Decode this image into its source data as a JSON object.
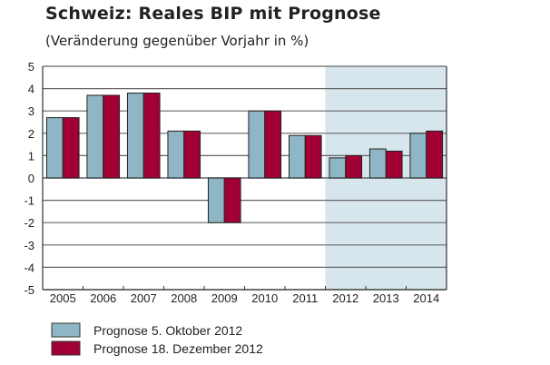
{
  "chart_data": {
    "type": "bar",
    "title": "Schweiz: Reales BIP mit Prognose",
    "subtitle": "(Veränderung gegenüber Vorjahr in %)",
    "xlabel": "",
    "ylabel": "",
    "categories": [
      "2005",
      "2006",
      "2007",
      "2008",
      "2009",
      "2010",
      "2011",
      "2012",
      "2013",
      "2014"
    ],
    "series": [
      {
        "name": "Prognose 5. Oktober 2012",
        "color": "#8fb6c4",
        "values": [
          2.7,
          3.7,
          3.8,
          2.1,
          -2.0,
          3.0,
          1.9,
          0.9,
          1.3,
          2.0
        ]
      },
      {
        "name": "Prognose 18. Dezember 2012",
        "color": "#a10035",
        "values": [
          2.7,
          3.7,
          3.8,
          2.1,
          -2.0,
          3.0,
          1.9,
          1.0,
          1.2,
          2.1
        ]
      }
    ],
    "ylim": [
      -5,
      5
    ],
    "yticks": [
      "5",
      "4",
      "3",
      "2",
      "1",
      "0",
      "-1",
      "-2",
      "-3",
      "-4",
      "-5"
    ],
    "forecast_shading": {
      "from": "2012",
      "to": "2014",
      "color": "#d6e6ec"
    },
    "grid": true,
    "legend_position": "bottom-left"
  }
}
